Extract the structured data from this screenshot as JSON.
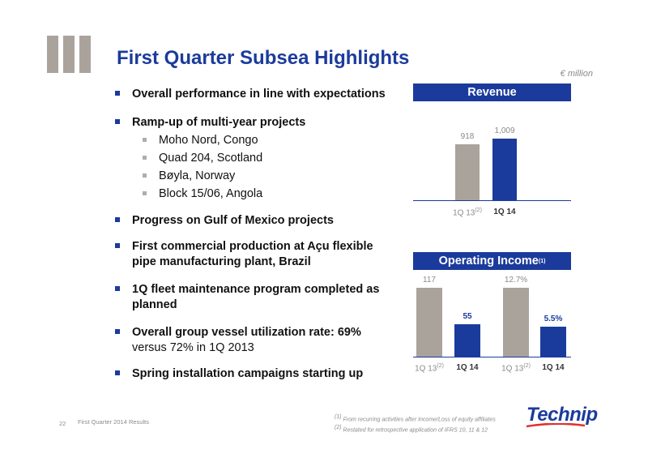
{
  "title": "First Quarter Subsea Highlights",
  "unit": "€ million",
  "bullets": [
    {
      "text": "Overall performance in line with expectations"
    },
    {
      "text": "Ramp-up of multi-year projects",
      "sub": [
        "Moho Nord, Congo",
        "Quad 204, Scotland",
        "Bøyla, Norway",
        "Block 15/06, Angola"
      ]
    },
    {
      "text": "Progress on Gulf of Mexico projects"
    },
    {
      "text": "First commercial production at Açu flexible",
      "text2": "pipe manufacturing plant, Brazil"
    },
    {
      "text": "1Q fleet maintenance program completed as",
      "text2": "planned"
    },
    {
      "text": "Overall group vessel utilization rate: 69%",
      "text2": "versus 72% in 1Q 2013"
    },
    {
      "text": "Spring installation campaigns starting up"
    }
  ],
  "chart_data": [
    {
      "type": "bar",
      "title": "Revenue",
      "categories": [
        "1Q 13",
        "1Q 14"
      ],
      "category_notes": [
        "(2)",
        ""
      ],
      "values": [
        918,
        1009
      ],
      "value_labels": [
        "918",
        "1,009"
      ]
    },
    {
      "type": "bar",
      "title": "Operating Income",
      "title_note": "(1)",
      "groups": [
        {
          "categories": [
            "1Q 13",
            "1Q 14"
          ],
          "category_notes": [
            "(2)",
            ""
          ],
          "values": [
            117,
            55
          ],
          "value_labels": [
            "117",
            "55"
          ]
        },
        {
          "categories": [
            "1Q 13",
            "1Q 14"
          ],
          "category_notes": [
            "(2)",
            ""
          ],
          "values": [
            12.7,
            5.5
          ],
          "value_labels": [
            "12.7%",
            "5.5%"
          ]
        }
      ]
    }
  ],
  "footer": {
    "page": "22",
    "text": "First Quarter 2014 Results",
    "note1_mark": "(1)",
    "note1": "From recurring activities after Income/Loss of equity affiliates",
    "note2_mark": "(2)",
    "note2": "Restated for retrospective application of IFRS 10, 11 & 12",
    "logo": "Technip"
  },
  "colors": {
    "accent": "#1b3b9c",
    "grey": "#a9a39c"
  }
}
